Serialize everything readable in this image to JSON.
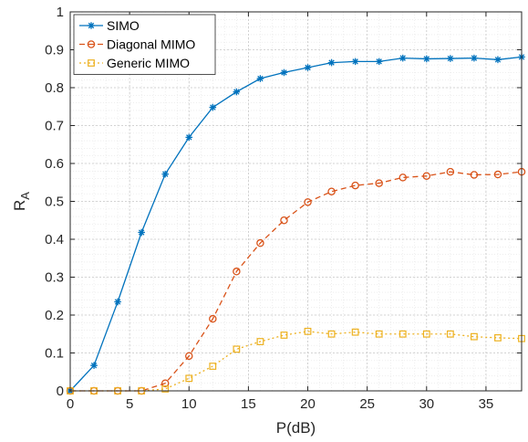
{
  "chart_data": {
    "type": "line",
    "xlabel": "P(dB)",
    "ylabel_main": "R",
    "ylabel_sub": "A",
    "xlim": [
      0,
      38
    ],
    "ylim": [
      0,
      1
    ],
    "xticks": [
      0,
      5,
      10,
      15,
      20,
      25,
      30,
      35
    ],
    "yticks": [
      0,
      0.1,
      0.2,
      0.3,
      0.4,
      0.5,
      0.6,
      0.7,
      0.8,
      0.9,
      1
    ],
    "grid": true,
    "minor_grid": true,
    "legend_position": "top-left",
    "x": [
      0,
      2,
      4,
      6,
      8,
      10,
      12,
      14,
      16,
      18,
      20,
      22,
      24,
      26,
      28,
      30,
      32,
      34,
      36,
      38
    ],
    "series": [
      {
        "name": "SIMO",
        "color": "#0072BD",
        "line_style": "solid",
        "marker": "asterisk",
        "values": [
          0.0,
          0.067,
          0.235,
          0.418,
          0.572,
          0.669,
          0.748,
          0.789,
          0.824,
          0.84,
          0.853,
          0.866,
          0.869,
          0.869,
          0.878,
          0.876,
          0.877,
          0.878,
          0.874,
          0.881
        ]
      },
      {
        "name": "Diagonal MIMO",
        "color": "#D95319",
        "line_style": "dashed",
        "marker": "circle",
        "values": [
          0.0,
          0.0,
          0.0,
          0.0,
          0.02,
          0.092,
          0.19,
          0.315,
          0.39,
          0.45,
          0.498,
          0.526,
          0.542,
          0.548,
          0.563,
          0.567,
          0.578,
          0.57,
          0.571,
          0.578
        ]
      },
      {
        "name": "Generic MIMO",
        "color": "#EDB120",
        "line_style": "dotted",
        "marker": "square",
        "values": [
          0.0,
          0.0,
          0.0,
          0.0,
          0.005,
          0.033,
          0.065,
          0.11,
          0.13,
          0.147,
          0.157,
          0.15,
          0.155,
          0.15,
          0.15,
          0.15,
          0.15,
          0.143,
          0.14,
          0.138
        ]
      }
    ]
  }
}
